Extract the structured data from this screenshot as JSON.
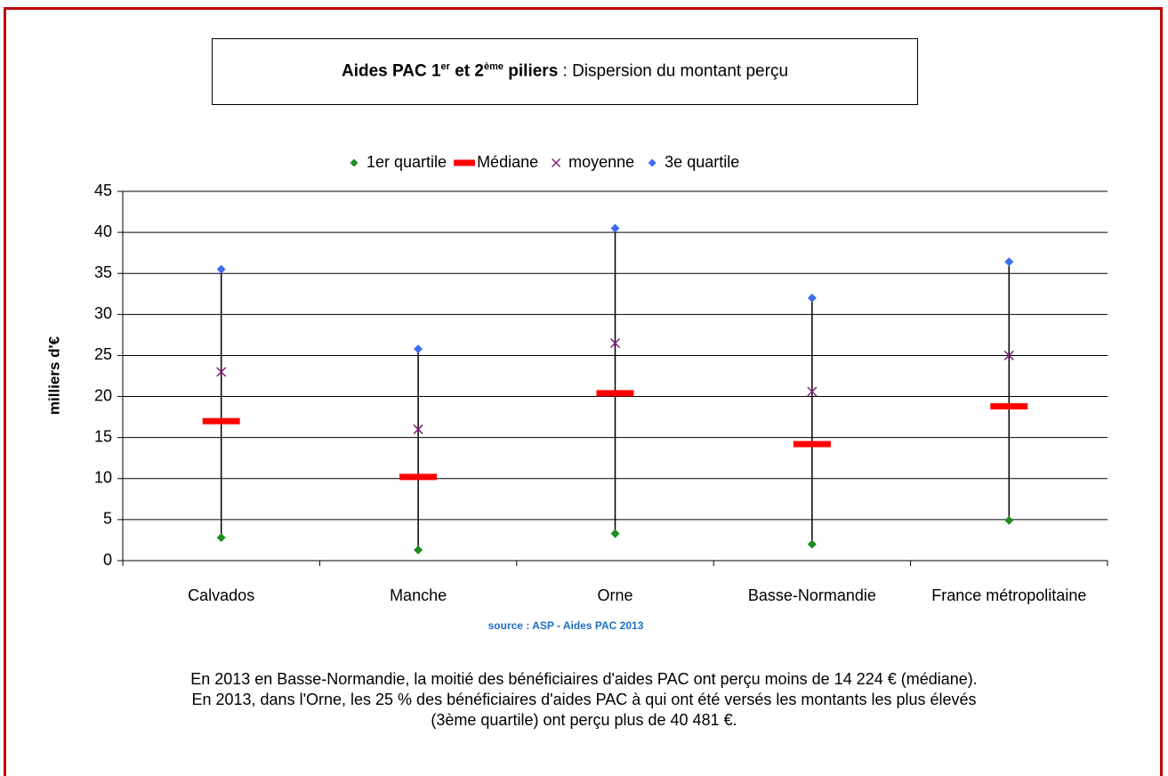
{
  "chart_data": {
    "type": "dispersion",
    "title": [
      "Aides PAC 1",
      "er",
      " et 2",
      "ème",
      " piliers",
      " : Dispersion du montant perçu"
    ],
    "y_label": "milliers d'€",
    "source": "source : ASP - Aides PAC 2013",
    "categories": [
      "Calvados",
      "Manche",
      "Orne",
      "Basse-Normandie",
      "France métropolitaine"
    ],
    "series": [
      {
        "name": "1er quartile",
        "color": "#1e8c1e",
        "marker": "diamond",
        "values": [
          2.8,
          1.3,
          3.3,
          2.0,
          4.9
        ]
      },
      {
        "name": "Médiane",
        "color": "#ff0000",
        "marker": "dash",
        "values": [
          17.0,
          10.2,
          20.4,
          14.2,
          18.8
        ]
      },
      {
        "name": "moyenne",
        "color": "#80207a",
        "marker": "x",
        "values": [
          23.0,
          16.0,
          26.5,
          20.6,
          25.0
        ]
      },
      {
        "name": "3e quartile",
        "color": "#3c6ef0",
        "marker": "diamond",
        "values": [
          35.5,
          25.8,
          40.5,
          32.0,
          36.4
        ]
      }
    ],
    "ylim": [
      0,
      45
    ],
    "yticks": [
      0,
      5,
      10,
      15,
      20,
      25,
      30,
      35,
      40,
      45
    ],
    "grid": true,
    "legend": "top"
  },
  "caption": [
    "En 2013 en Basse-Normandie, la moitié des bénéficiaires d'aides PAC ont perçu moins de 14 224 € (médiane).",
    "En 2013, dans l'Orne, les 25 % des bénéficiaires d'aides PAC à qui ont été versés les montants les plus élevés",
    "(3ème quartile) ont perçu plus de 40 481 €."
  ]
}
